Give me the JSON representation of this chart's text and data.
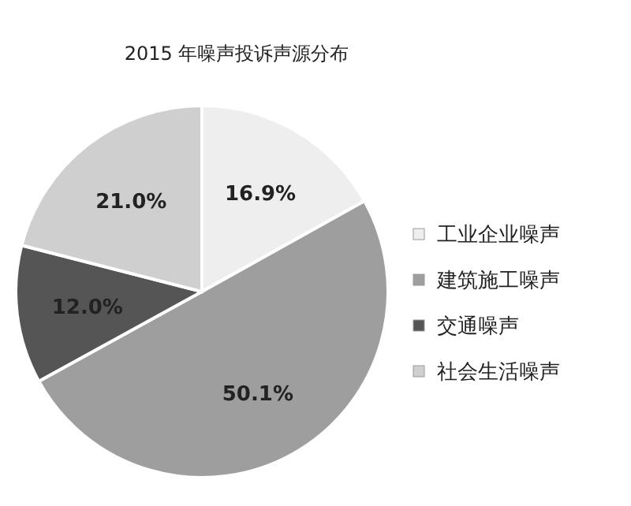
{
  "chart_data": {
    "type": "pie",
    "title": "2015 年噪声投诉声源分布",
    "categories": [
      "工业企业噪声",
      "建筑施工噪声",
      "交通噪声",
      "社会生活噪声"
    ],
    "values": [
      16.9,
      50.1,
      12.0,
      21.0
    ],
    "value_labels": [
      "16.9%",
      "50.1%",
      "12.0%",
      "21.0%"
    ],
    "colors": [
      "#eeeeee",
      "#9e9e9e",
      "#555555",
      "#cfcfcf"
    ],
    "legend": "right"
  }
}
